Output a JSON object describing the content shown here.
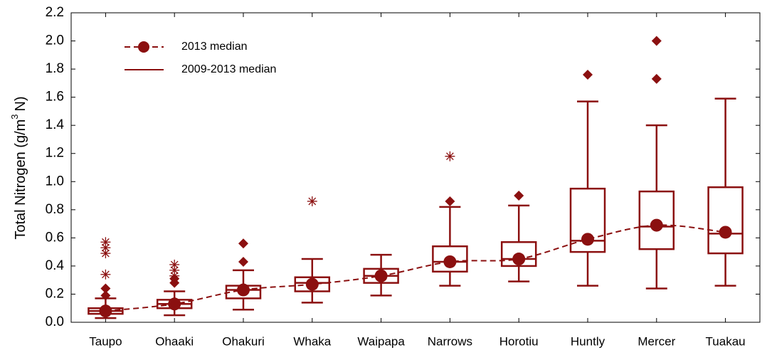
{
  "chart_data": {
    "type": "box",
    "y_label": {
      "text": "Total Nitrogen (g/m",
      "sup": "3",
      "tail": "N)"
    },
    "categories": [
      "Taupo",
      "Ohaaki",
      "Ohakuri",
      "Whaka",
      "Waipapa",
      "Narrows",
      "Horotiu",
      "Huntly",
      "Mercer",
      "Tuakau"
    ],
    "ylim": [
      0,
      2.2
    ],
    "yticks": [
      {
        "value": 0,
        "label": "0.0"
      },
      {
        "value": 0.2,
        "label": "0.2"
      },
      {
        "value": 0.4,
        "label": "0.4"
      },
      {
        "value": 0.6,
        "label": "0.6"
      },
      {
        "value": 0.8,
        "label": "0.8"
      },
      {
        "value": 1.0,
        "label": "1.0"
      },
      {
        "value": 1.2,
        "label": "1.2"
      },
      {
        "value": 1.4,
        "label": "1.4"
      },
      {
        "value": 1.6,
        "label": "1.6"
      },
      {
        "value": 1.8,
        "label": "1.8"
      },
      {
        "value": 2.0,
        "label": "2.0"
      },
      {
        "value": 2.2,
        "label": "2.2"
      }
    ],
    "legend": "upper left",
    "series": [
      {
        "name": "2013 median",
        "color": "#8b1010",
        "values": [
          0.08,
          0.13,
          0.23,
          0.27,
          0.33,
          0.43,
          0.45,
          0.59,
          0.69,
          0.64
        ]
      }
    ],
    "boxes": {
      "name": "2009-2013 median",
      "color": "#8b1010",
      "whisker_low": [
        0.03,
        0.05,
        0.09,
        0.14,
        0.19,
        0.26,
        0.29,
        0.26,
        0.24,
        0.26
      ],
      "q1": [
        0.06,
        0.1,
        0.17,
        0.22,
        0.28,
        0.36,
        0.4,
        0.5,
        0.52,
        0.49
      ],
      "median": [
        0.08,
        0.13,
        0.23,
        0.28,
        0.33,
        0.43,
        0.45,
        0.58,
        0.68,
        0.63
      ],
      "q3": [
        0.1,
        0.16,
        0.26,
        0.32,
        0.38,
        0.54,
        0.57,
        0.95,
        0.93,
        0.96
      ],
      "whisker_high": [
        0.17,
        0.22,
        0.37,
        0.45,
        0.48,
        0.82,
        0.83,
        1.57,
        1.4,
        1.59
      ],
      "outliers": [
        [
          0.19,
          0.24
        ],
        [
          0.28,
          0.31
        ],
        [
          0.43,
          0.56
        ],
        [],
        [],
        [
          0.86
        ],
        [
          0.9
        ],
        [
          1.76
        ],
        [
          1.73,
          2.0
        ],
        []
      ],
      "extremes": [
        [
          0.34,
          0.49,
          0.53,
          0.57
        ],
        [
          0.33,
          0.37,
          0.41
        ],
        [],
        [
          0.86
        ],
        [],
        [
          1.18
        ],
        [],
        [],
        [],
        []
      ]
    }
  }
}
